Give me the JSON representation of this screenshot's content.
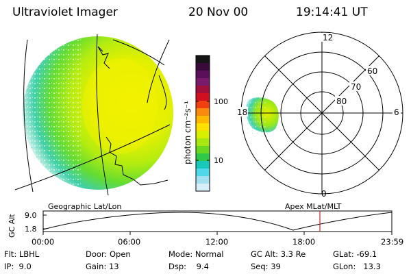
{
  "header": {
    "instrument": "Ultraviolet Imager",
    "date": "20 Nov 00",
    "time": "19:14:41 UT"
  },
  "colorbar": {
    "unit_label": "photon cm⁻²s⁻¹",
    "tick_labels": [
      "100",
      "10"
    ],
    "colors": [
      "#151515",
      "#3a0a3a",
      "#5a0f5a",
      "#7a1a6a",
      "#a0103a",
      "#d01020",
      "#f04010",
      "#f88a10",
      "#ffb800",
      "#ffe000",
      "#d8f000",
      "#a8e810",
      "#6ad820",
      "#30c848",
      "#18c8b8",
      "#50d8e8",
      "#a0e0f0",
      "#d8eef8"
    ]
  },
  "left_panel": {
    "caption": "Geographic Lat/Lon"
  },
  "right_panel": {
    "caption": "Apex MLat/MLT",
    "mlt_labels": [
      "12",
      "18",
      "6",
      "0"
    ],
    "mlat_labels": [
      "60",
      "70",
      "80"
    ]
  },
  "timeline": {
    "axis_title": "GC Alt",
    "y_ticks": [
      "9.0",
      "1.8"
    ],
    "x_ticks": [
      "00:00",
      "06:00",
      "12:00",
      "18:00",
      "23:59"
    ],
    "marker_color": "#d02020"
  },
  "status": {
    "filter_label": "Flt:",
    "filter": "LBHL",
    "ip_label": "IP:",
    "ip": "9.0",
    "door_label": "Door:",
    "door": "Open",
    "gain_label": "Gain:",
    "gain": "13",
    "mode_label": "Mode:",
    "mode": "Normal",
    "dsp_label": "Dsp:",
    "dsp": "9.4",
    "gcalt_label": "GC Alt:",
    "gcalt": "3.3 Re",
    "seq_label": "Seq:",
    "seq": "39",
    "glat_label": "GLat:",
    "glat": "-69.1",
    "glon_label": "GLon:",
    "glon": "13.3"
  }
}
